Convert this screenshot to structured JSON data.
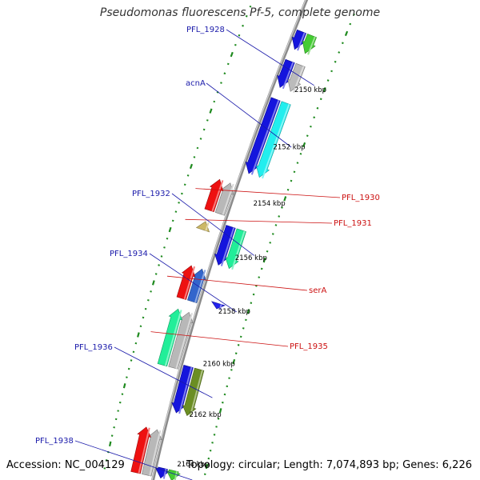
{
  "title": "Pseudomonas fluorescens Pf-5, complete genome",
  "accession_text": "Accession: NC_004129",
  "topology_text": "Topology: circular; Length: 7,074,893 bp; Genes: 6,226",
  "kbp_labels": [
    {
      "pos": 2150,
      "label": "2150 kbp"
    },
    {
      "pos": 2152,
      "label": "2152 kbp"
    },
    {
      "pos": 2154,
      "label": "2154 kbp"
    },
    {
      "pos": 2156,
      "label": "2156 kbp"
    },
    {
      "pos": 2158,
      "label": "2158 kbp"
    },
    {
      "pos": 2160,
      "label": "2160 kbp"
    },
    {
      "pos": 2162,
      "label": "2162 kbp"
    },
    {
      "pos": 2164,
      "label": "2164 kbp"
    }
  ],
  "genes": [
    {
      "name": "",
      "strand": "+",
      "start": 2148.6,
      "end": 2149.2,
      "color": "#44cc33"
    },
    {
      "name": "PFL_1928",
      "strand": "+",
      "start": 2149.6,
      "end": 2150.5,
      "color": "#bbbbbb"
    },
    {
      "name": "acnA",
      "strand": "+",
      "start": 2150.9,
      "end": 2153.5,
      "color": "#22eeee"
    },
    {
      "name": "PFL_1930",
      "strand": "-",
      "start": 2154.0,
      "end": 2155.1,
      "color": "#ee1111"
    },
    {
      "name": "PFL_1931",
      "strand": "-",
      "start": 2155.5,
      "end": 2155.8,
      "color": "#ccb866"
    },
    {
      "name": "PFL_1932",
      "strand": "+",
      "start": 2155.4,
      "end": 2156.8,
      "color": "#22ee99"
    },
    {
      "name": "PFL_1934",
      "strand": "+",
      "start": 2158.1,
      "end": 2158.3,
      "color": "#2222ee"
    },
    {
      "name": "serA",
      "strand": "-",
      "start": 2157.1,
      "end": 2158.3,
      "color": "#ee1111"
    },
    {
      "name": "PFL_1935",
      "strand": "-",
      "start": 2158.7,
      "end": 2160.8,
      "color": "#22ee99"
    },
    {
      "name": "PFL_1936",
      "strand": "+",
      "start": 2160.6,
      "end": 2162.4,
      "color": "#6b8e23"
    },
    {
      "name": "",
      "strand": "-",
      "start": 2163.2,
      "end": 2165.0,
      "color": "#ee1111"
    },
    {
      "name": "PFL_1938",
      "strand": "+",
      "start": 2164.6,
      "end": 2165.0,
      "color": "#44cc33"
    }
  ]
}
